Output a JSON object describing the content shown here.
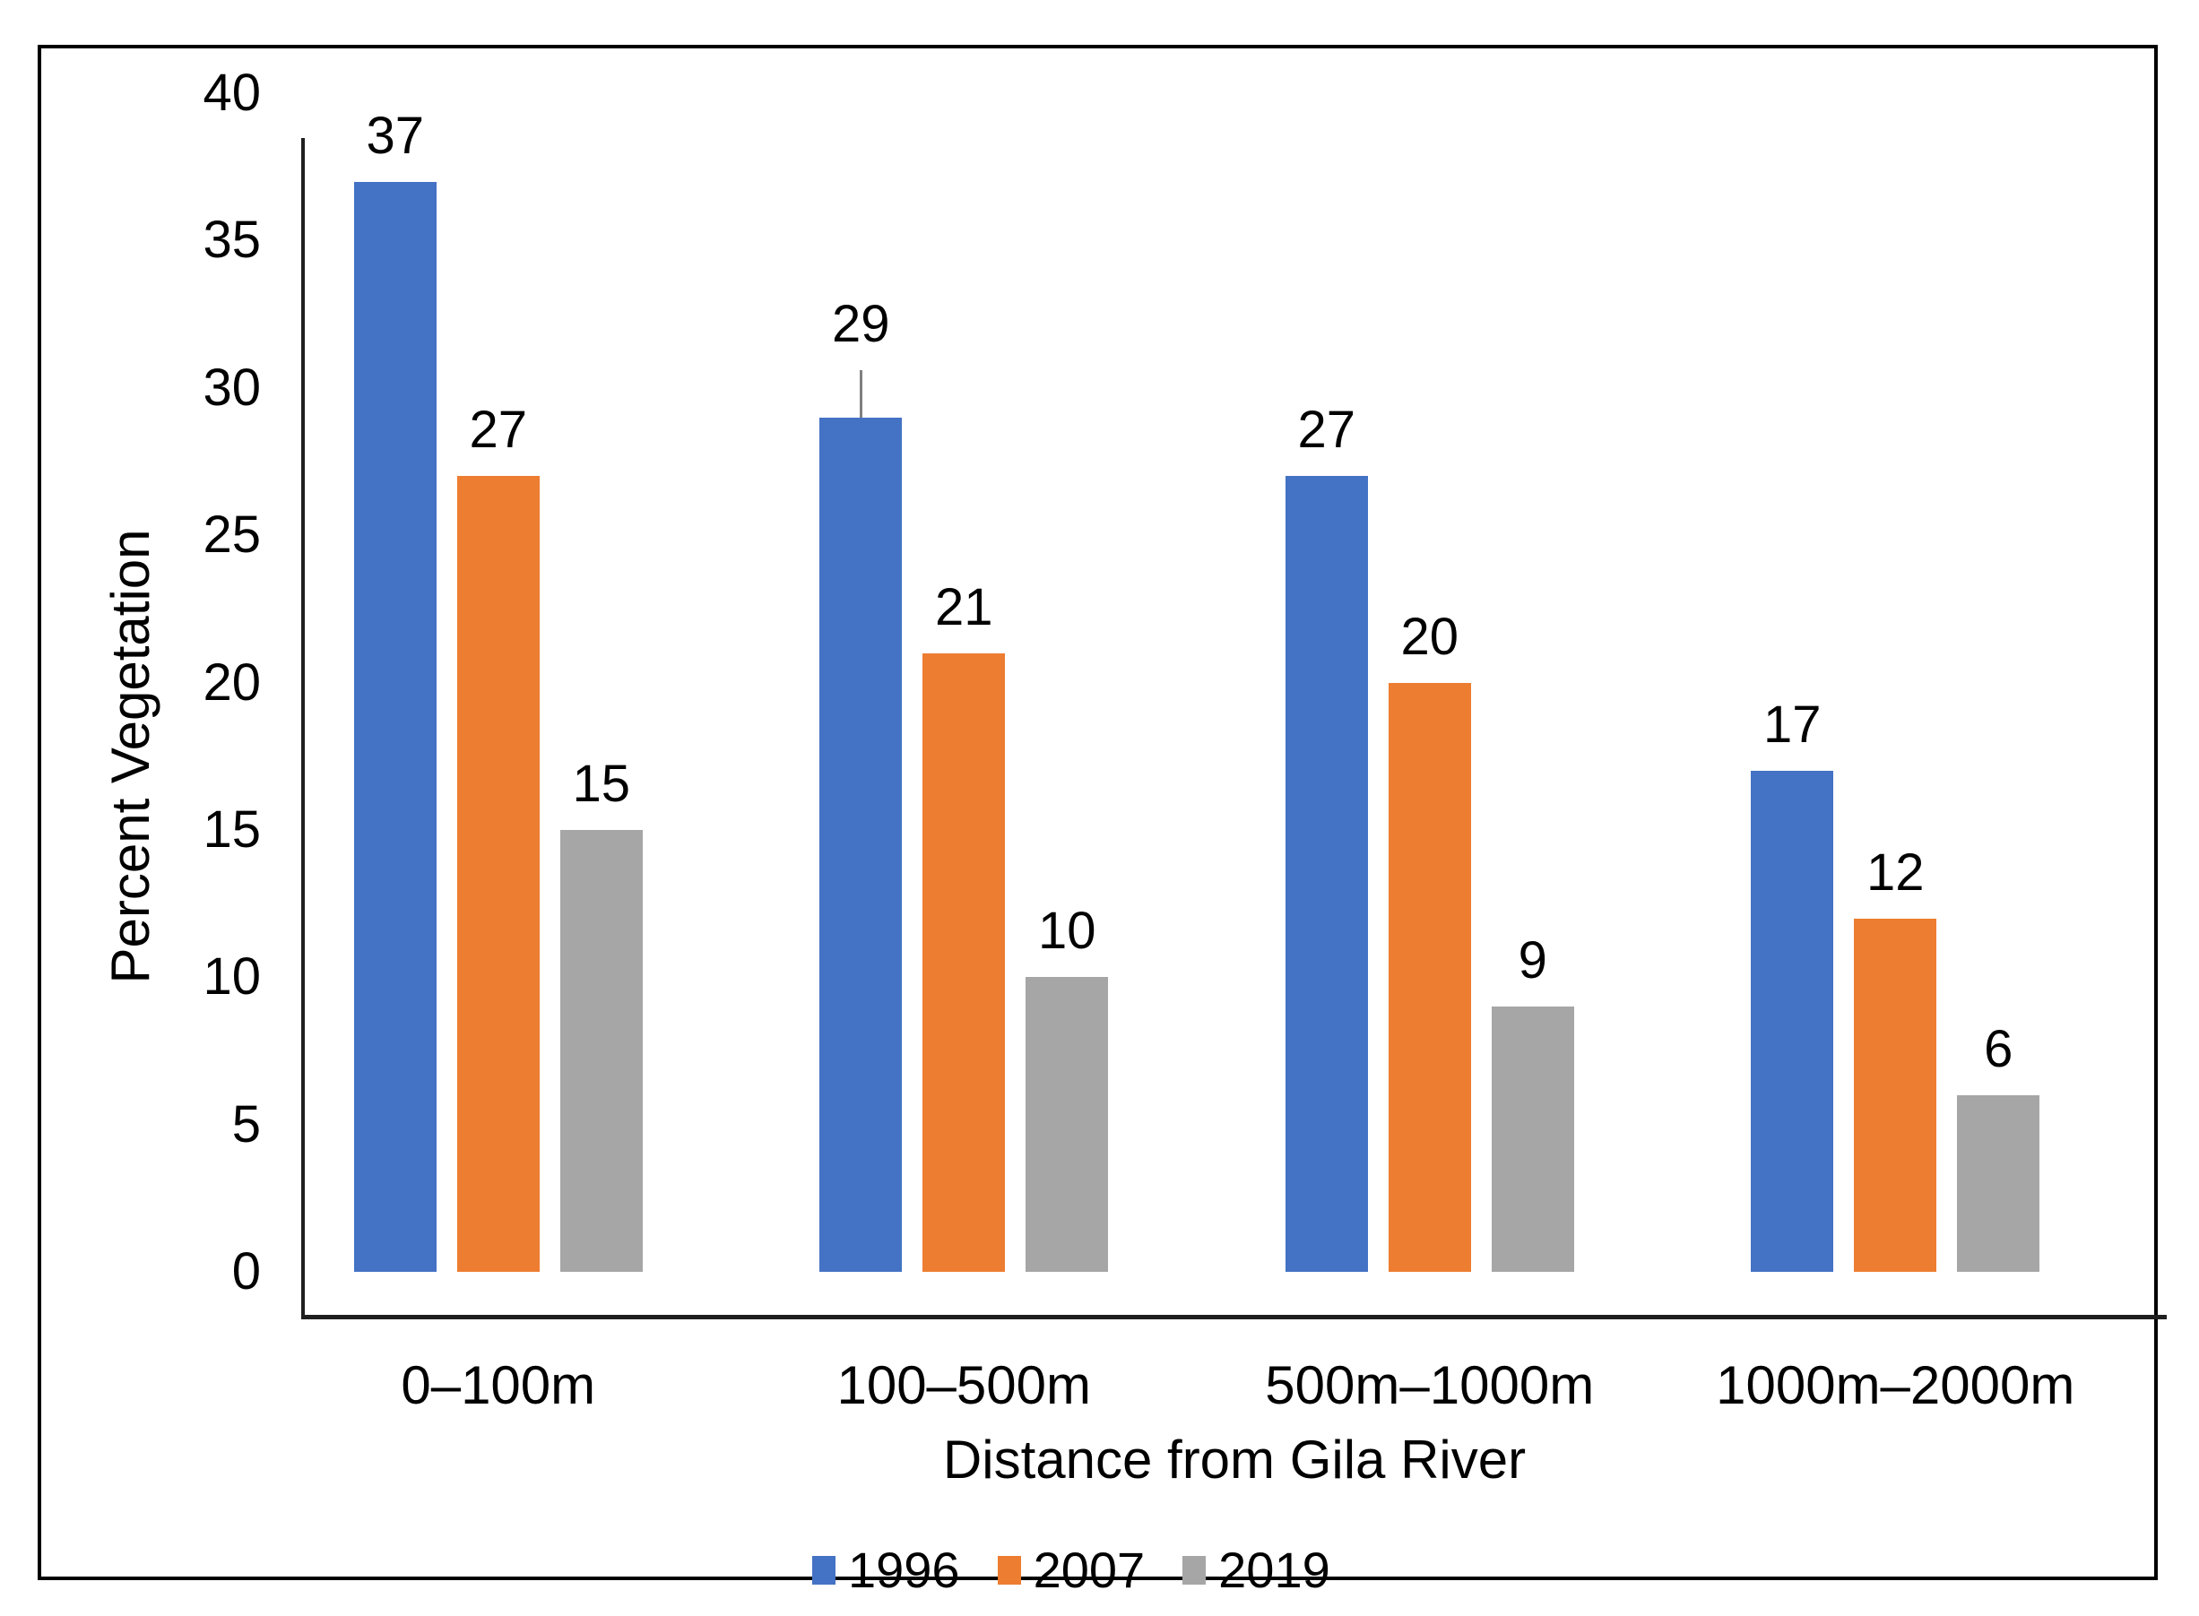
{
  "chart_data": {
    "type": "bar",
    "title": "",
    "categories": [
      "0–100m",
      "100–500m",
      "500m–1000m",
      "1000m–2000m"
    ],
    "series": [
      {
        "name": "1996",
        "color": "#4472C4",
        "values": [
          37,
          29,
          27,
          17
        ]
      },
      {
        "name": "2007",
        "color": "#ED7D31",
        "values": [
          27,
          21,
          20,
          12
        ]
      },
      {
        "name": "2019",
        "color": "#A6A6A6",
        "values": [
          15,
          10,
          9,
          6
        ]
      }
    ],
    "data_labels": {
      "1996": [
        "37",
        "29",
        "27",
        "17"
      ],
      "2007": [
        "27",
        "21",
        "20",
        "12"
      ],
      "2019": [
        "15",
        "10",
        "9",
        "6"
      ]
    },
    "xlabel": "Distance from Gila River",
    "ylabel": "Percent Vegetation",
    "ylim": [
      0,
      40
    ],
    "yticks": [
      0,
      5,
      10,
      15,
      20,
      25,
      30,
      35,
      40
    ],
    "ytick_labels": [
      "0",
      "5",
      "10",
      "15",
      "20",
      "25",
      "30",
      "35",
      "40"
    ],
    "grid": false,
    "legend_position": "bottom",
    "legend_entries": [
      "1996",
      "2007",
      "2019"
    ],
    "error_bars": [
      {
        "series": "1996",
        "category": "100–500m",
        "plus": 1.6,
        "color": "#808080"
      }
    ],
    "style": {
      "background": "#FFFFFF",
      "frame_border_color": "#000000",
      "axis_line_color": "#1F1F1F",
      "text_color": "#000000"
    }
  }
}
